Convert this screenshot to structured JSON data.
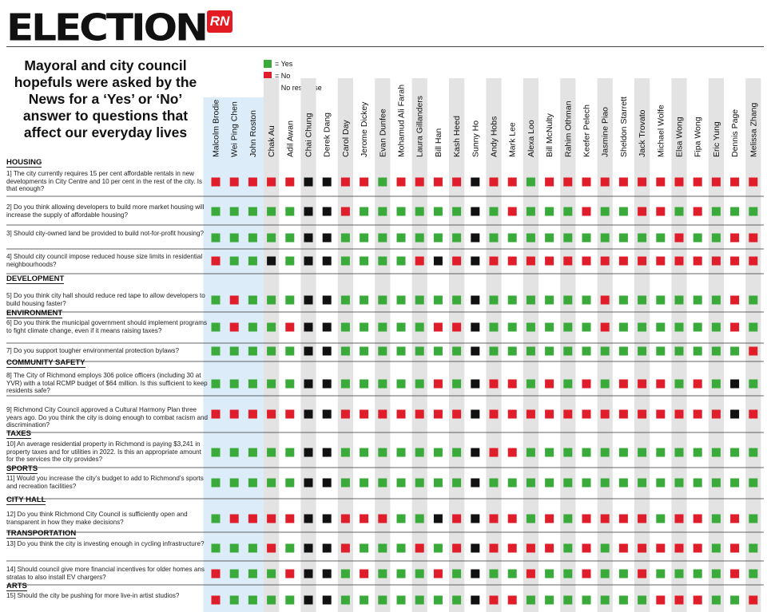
{
  "header": {
    "brand": "ELECTION",
    "logo": "RN"
  },
  "intro": {
    "text": "Mayoral and city council hopefuls were asked by the News for a ‘Yes’ or ‘No’ answer to questions that affect our everyday lives"
  },
  "legend": {
    "yes": "= Yes",
    "no": "= No",
    "none": "= No response"
  },
  "colors": {
    "yes": "#3aaa3a",
    "no": "#e01d2a",
    "none": "#111111",
    "mayor_band": "#dcecf8",
    "alt_band": "#e3e3e3"
  },
  "chart_data": {
    "type": "table",
    "candidates": [
      "Malcolm Brodie",
      "Wei Ping Chen",
      "John Roston",
      "Chak Au",
      "Adil Awan",
      "Chai Chung",
      "Derek Dang",
      "Carol Day",
      "Jerome Dickey",
      "Evan Dunfee",
      "Mohamud Ali Farah",
      "Laura Gillanders",
      "Bill Han",
      "Kash Heed",
      "Sunny Ho",
      "Andy Hobs",
      "Mark Lee",
      "Alexa Loo",
      "Bill McNulty",
      "Rahim Othman",
      "Keefer Pelech",
      "Jasmine Piao",
      "Sheldon Starrett",
      "Jack Trovato",
      "Michael Wolfe",
      "Elsa Wong",
      "Fipa Wong",
      "Eric Yung",
      "Dennis Page",
      "Melissa Zhang"
    ],
    "mayoral_candidates": [
      "Malcolm Brodie",
      "Wei Ping Chen",
      "John Roston"
    ],
    "questions": [
      {
        "category": "HOUSING",
        "text": "1] The city currently requires 15 per cent affordable rentals in new developments in City Centre and 10 per cent in the rest of the city. Is that enough?",
        "answers": "NNNNNXXNNGNNNNXNNGNNNNNNNNNNNN"
      },
      {
        "category": "",
        "text": "2] Do you think allowing developers to build more market housing will increase the supply of affordable housing?",
        "answers": "GGGGGXXNGGGGGGXGNGGGNGGNNGNGGG"
      },
      {
        "category": "",
        "text": "3] Should city-owned land be provided to build not-for-profit housing?",
        "answers": "GGGGGXXGGGGGGGXGGGGGGGGGGNGGNN"
      },
      {
        "category": "",
        "text": "4] Should city council impose reduced house size limits in residential neighbourhoods?",
        "answers": "NGGXGXXGGGGNXNXNNNNNNNNNNNNNNN"
      },
      {
        "category": "DEVELOPMENT",
        "text": "5] Do you think city hall should reduce red tape to allow developers to build housing faster?",
        "answers": "GNGGGXXGGGGGGGXGGGGGGNGGGGGGNG"
      },
      {
        "category": "ENVIRONMENT",
        "text": "6] Do you think the municipal government should implement programs to fight climate change, even if it means raising taxes?",
        "answers": "GNGGNXXGGGGGNNXGGGGGGNGGGGGGNG"
      },
      {
        "category": "",
        "text": "7] Do you support tougher environmental protection bylaws?",
        "answers": "GGGGGXXGGGGGGGXGGGGGGGGGGGGGGN"
      },
      {
        "category": "COMMUNITY SAFETY",
        "text": "8] The City of Richmond employs 306 police officers (including 30 at YVR) with a total RCMP budget of $64 million. Is this sufficient to keep residents safe?",
        "answers": "GGGGGXXGGGGGNGXNNGNGNGNNNGNGXG"
      },
      {
        "category": "",
        "text": "9] Richmond City Council approved a Cultural Harmony Plan three years ago. Do you think the city is doing enough to combat racism and discrimination?",
        "answers": "NNNNNXXNNNNNNNXNNNNNNNNNNNNNXN"
      },
      {
        "category": "TAXES",
        "text": "10] An average residential property in Richmond is paying $3,241 in property taxes and for utilities in 2022. Is this an appropriate amount for the services the city provides?",
        "answers": "GGGGGXXGGGGGGGXNNGGGGGGGGGGGGG"
      },
      {
        "category": "SPORTS",
        "text": "11] Would you increase the city’s budget to add to Richmond’s sports and recreation facilities?",
        "answers": "GGGGGXXGGGGGGGXGGGGGGGGGGGGGGG"
      },
      {
        "category": "CITY HALL",
        "text": "12] Do you think Richmond City Council is sufficiently open and transparent in how they make decisions?",
        "answers": "GNNNNXXNNNGGXNXNNGNGNNNNGNNGNG"
      },
      {
        "category": "TRANSPORTATION",
        "text": "13] Do you think the city is investing enough in cycling infrastructure?",
        "answers": "GGGNGXXNGGGNGNXNNNNGNGNNNNNGNG"
      },
      {
        "category": "",
        "text": "14] Should council give more financial incentives for older homes ans stratas to also install EV chargers?",
        "answers": "NGGGNXXGNGGGNGXGGNGGNGGNGGGGNG"
      },
      {
        "category": "ARTS",
        "text": "15] Should the city be pushing for more live-in artist studios?",
        "answers": "NGGGGXXGGGGGGGXNNGGGGGGGNNNGGN"
      }
    ]
  }
}
